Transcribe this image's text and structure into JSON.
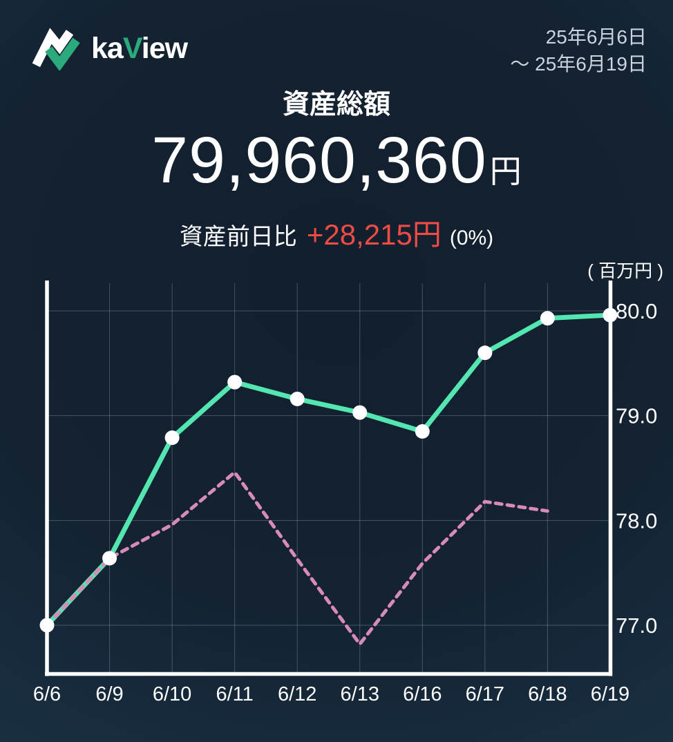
{
  "header": {
    "logo": {
      "word_prefix": "ka",
      "word_accent": "V",
      "word_suffix": "iew"
    },
    "date_range": {
      "line1": "25年6月6日",
      "line2": "～ 25年6月19日"
    }
  },
  "summary": {
    "title": "資産総額",
    "total_amount": "79,960,360",
    "currency_suffix": "円",
    "change_label": "資産前日比",
    "change_value": "+28,215円",
    "change_percent": "(0%)"
  },
  "colors": {
    "accent_green": "#2bab7c",
    "line_teal": "#53e6b1",
    "line_pink": "#d88bb7",
    "change_red": "#f04b45",
    "background_dark": "#131f2e",
    "background_edge": "#214661"
  },
  "chart_data": {
    "type": "line",
    "unit_label": "( 百万円 )",
    "categories": [
      "6/6",
      "6/9",
      "6/10",
      "6/11",
      "6/12",
      "6/13",
      "6/16",
      "6/17",
      "6/18",
      "6/19"
    ],
    "y_ticks": [
      80.0,
      79.0,
      78.0,
      77.0
    ],
    "ylim": [
      76.5,
      80.3
    ],
    "grid": true,
    "legend": "none",
    "series": [
      {
        "id": "asset-total",
        "style": "solid",
        "color": "#53e6b1",
        "markers": true,
        "values": [
          77.0,
          77.64,
          78.79,
          79.32,
          79.16,
          79.03,
          78.85,
          79.6,
          79.93,
          79.96
        ]
      },
      {
        "id": "reference-dotted",
        "style": "dashed",
        "color": "#d88bb7",
        "markers": false,
        "values": [
          77.0,
          77.64,
          77.96,
          78.46,
          77.63,
          76.82,
          77.59,
          78.18,
          78.09,
          null
        ]
      }
    ]
  }
}
